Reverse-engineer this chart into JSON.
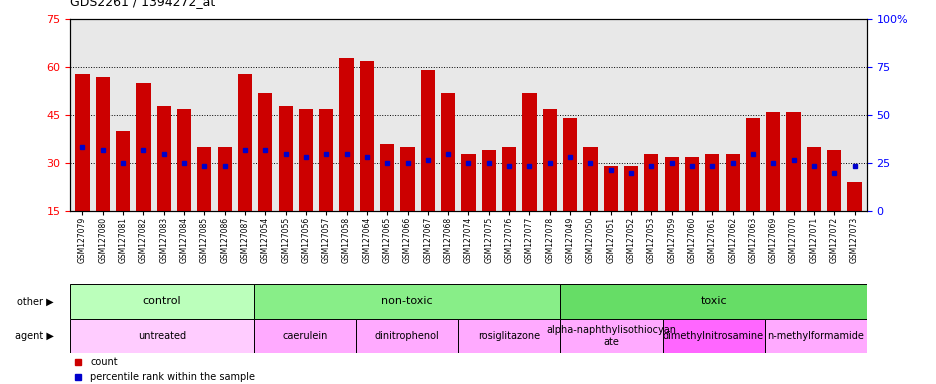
{
  "title": "GDS2261 / 1394272_at",
  "samples": [
    "GSM127079",
    "GSM127080",
    "GSM127081",
    "GSM127082",
    "GSM127083",
    "GSM127084",
    "GSM127085",
    "GSM127086",
    "GSM127087",
    "GSM127054",
    "GSM127055",
    "GSM127056",
    "GSM127057",
    "GSM127058",
    "GSM127064",
    "GSM127065",
    "GSM127066",
    "GSM127067",
    "GSM127068",
    "GSM127074",
    "GSM127075",
    "GSM127076",
    "GSM127077",
    "GSM127078",
    "GSM127049",
    "GSM127050",
    "GSM127051",
    "GSM127052",
    "GSM127053",
    "GSM127059",
    "GSM127060",
    "GSM127061",
    "GSM127062",
    "GSM127063",
    "GSM127069",
    "GSM127070",
    "GSM127071",
    "GSM127072",
    "GSM127073"
  ],
  "bar_heights": [
    58,
    57,
    40,
    55,
    48,
    47,
    35,
    35,
    58,
    52,
    48,
    47,
    47,
    63,
    62,
    36,
    35,
    59,
    52,
    33,
    34,
    35,
    52,
    47,
    44,
    35,
    29,
    29,
    33,
    32,
    32,
    33,
    33,
    44,
    46,
    46,
    35,
    34,
    24
  ],
  "blue_dots": [
    35,
    34,
    30,
    34,
    33,
    30,
    29,
    29,
    34,
    34,
    33,
    32,
    33,
    33,
    32,
    30,
    30,
    31,
    33,
    30,
    30,
    29,
    29,
    30,
    32,
    30,
    28,
    27,
    29,
    30,
    29,
    29,
    30,
    33,
    30,
    31,
    29,
    27,
    29
  ],
  "bar_color": "#cc0000",
  "dot_color": "#0000cc",
  "bg_color": "#e8e8e8",
  "ylim_left": [
    15,
    75
  ],
  "yticks_left": [
    15,
    30,
    45,
    60,
    75
  ],
  "ylim_right": [
    0,
    100
  ],
  "yticks_right": [
    0,
    25,
    50,
    75,
    100
  ],
  "other_groups": [
    {
      "label": "control",
      "start": 0,
      "end": 9,
      "color": "#bbffbb"
    },
    {
      "label": "non-toxic",
      "start": 9,
      "end": 24,
      "color": "#88ee88"
    },
    {
      "label": "toxic",
      "start": 24,
      "end": 39,
      "color": "#66dd66"
    }
  ],
  "agent_groups": [
    {
      "label": "untreated",
      "start": 0,
      "end": 9,
      "color": "#ffccff"
    },
    {
      "label": "caerulein",
      "start": 9,
      "end": 14,
      "color": "#ffaaff"
    },
    {
      "label": "dinitrophenol",
      "start": 14,
      "end": 19,
      "color": "#ffaaff"
    },
    {
      "label": "rosiglitazone",
      "start": 19,
      "end": 24,
      "color": "#ffaaff"
    },
    {
      "label": "alpha-naphthylisothiocyan\nate",
      "start": 24,
      "end": 29,
      "color": "#ffaaff"
    },
    {
      "label": "dimethylnitrosamine",
      "start": 29,
      "end": 34,
      "color": "#ff66ff"
    },
    {
      "label": "n-methylformamide",
      "start": 34,
      "end": 39,
      "color": "#ffaaff"
    }
  ],
  "fig_width": 9.37,
  "fig_height": 3.84,
  "dpi": 100
}
